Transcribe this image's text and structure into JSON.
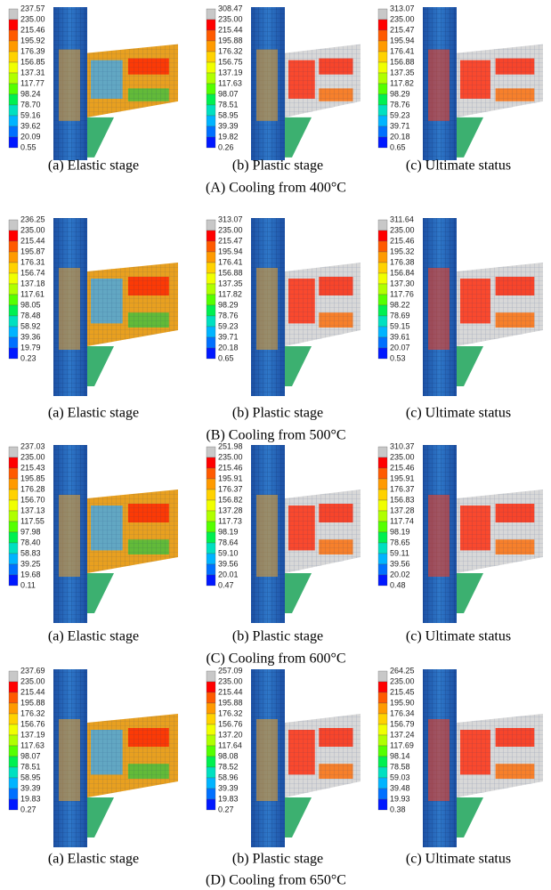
{
  "rows": [
    {
      "caption": "(A) Cooling from 400°C",
      "panels": [
        {
          "caption": "(a) Elastic stage",
          "legend": [
            "237.57",
            "235.00",
            "215.46",
            "195.92",
            "176.39",
            "156.85",
            "137.31",
            "117.77",
            "98.24",
            "78.70",
            "59.16",
            "39.62",
            "20.09",
            "0.55"
          ]
        },
        {
          "caption": "(b) Plastic stage",
          "legend": [
            "308.47",
            "235.00",
            "215.44",
            "195.88",
            "176.32",
            "156.75",
            "137.19",
            "117.63",
            "98.07",
            "78.51",
            "58.95",
            "39.39",
            "19.82",
            "0.26"
          ]
        },
        {
          "caption": "(c) Ultimate status",
          "legend": [
            "313.07",
            "235.00",
            "215.47",
            "195.94",
            "176.41",
            "156.88",
            "137.35",
            "117.82",
            "98.29",
            "78.76",
            "59.23",
            "39.71",
            "20.18",
            "0.65"
          ]
        }
      ]
    },
    {
      "caption": "(B) Cooling from 500°C",
      "panels": [
        {
          "caption": "(a) Elastic stage",
          "legend": [
            "236.25",
            "235.00",
            "215.44",
            "195.87",
            "176.31",
            "156.74",
            "137.18",
            "117.61",
            "98.05",
            "78.48",
            "58.92",
            "39.36",
            "19.79",
            "0.23"
          ]
        },
        {
          "caption": "(b) Plastic stage",
          "legend": [
            "313.07",
            "235.00",
            "215.47",
            "195.94",
            "176.41",
            "156.88",
            "137.35",
            "117.82",
            "98.29",
            "78.76",
            "59.23",
            "39.71",
            "20.18",
            "0.65"
          ]
        },
        {
          "caption": "(c) Ultimate status",
          "legend": [
            "311.64",
            "235.00",
            "215.46",
            "195.32",
            "176.38",
            "156.84",
            "137.30",
            "117.76",
            "98.22",
            "78.69",
            "59.15",
            "39.61",
            "20.07",
            "0.53"
          ]
        }
      ]
    },
    {
      "caption": "(C) Cooling from 600°C",
      "panels": [
        {
          "caption": "(a) Elastic stage",
          "legend": [
            "237.03",
            "235.00",
            "215.43",
            "195.85",
            "176.28",
            "156.70",
            "137.13",
            "117.55",
            "97.98",
            "78.40",
            "58.83",
            "39.25",
            "19.68",
            "0.11"
          ]
        },
        {
          "caption": "(b) Plastic stage",
          "legend": [
            "251.98",
            "235.00",
            "215.46",
            "195.91",
            "176.37",
            "156.82",
            "137.28",
            "117.73",
            "98.19",
            "78.64",
            "59.10",
            "39.56",
            "20.01",
            "0.47"
          ]
        },
        {
          "caption": "(c) Ultimate status",
          "legend": [
            "310.37",
            "235.00",
            "215.46",
            "195.91",
            "176.37",
            "156.83",
            "137.28",
            "117.74",
            "98.19",
            "78.65",
            "59.11",
            "39.56",
            "20.02",
            "0.48"
          ]
        }
      ]
    },
    {
      "caption": "(D) Cooling from 650°C",
      "panels": [
        {
          "caption": "(a) Elastic stage",
          "legend": [
            "237.69",
            "235.00",
            "215.44",
            "195.88",
            "176.32",
            "156.76",
            "137.19",
            "117.63",
            "98.07",
            "78.51",
            "58.95",
            "39.39",
            "19.83",
            "0.27"
          ]
        },
        {
          "caption": "(b) Plastic stage",
          "legend": [
            "257.09",
            "235.00",
            "215.44",
            "195.88",
            "176.32",
            "156.76",
            "137.20",
            "117.64",
            "98.08",
            "78.52",
            "58.96",
            "39.39",
            "19.83",
            "0.27"
          ]
        },
        {
          "caption": "(c) Ultimate status",
          "legend": [
            "264.25",
            "235.00",
            "215.45",
            "195.90",
            "176.34",
            "156.79",
            "137.24",
            "117.69",
            "98.14",
            "78.58",
            "59.03",
            "39.48",
            "19.93",
            "0.38"
          ]
        }
      ]
    }
  ]
}
